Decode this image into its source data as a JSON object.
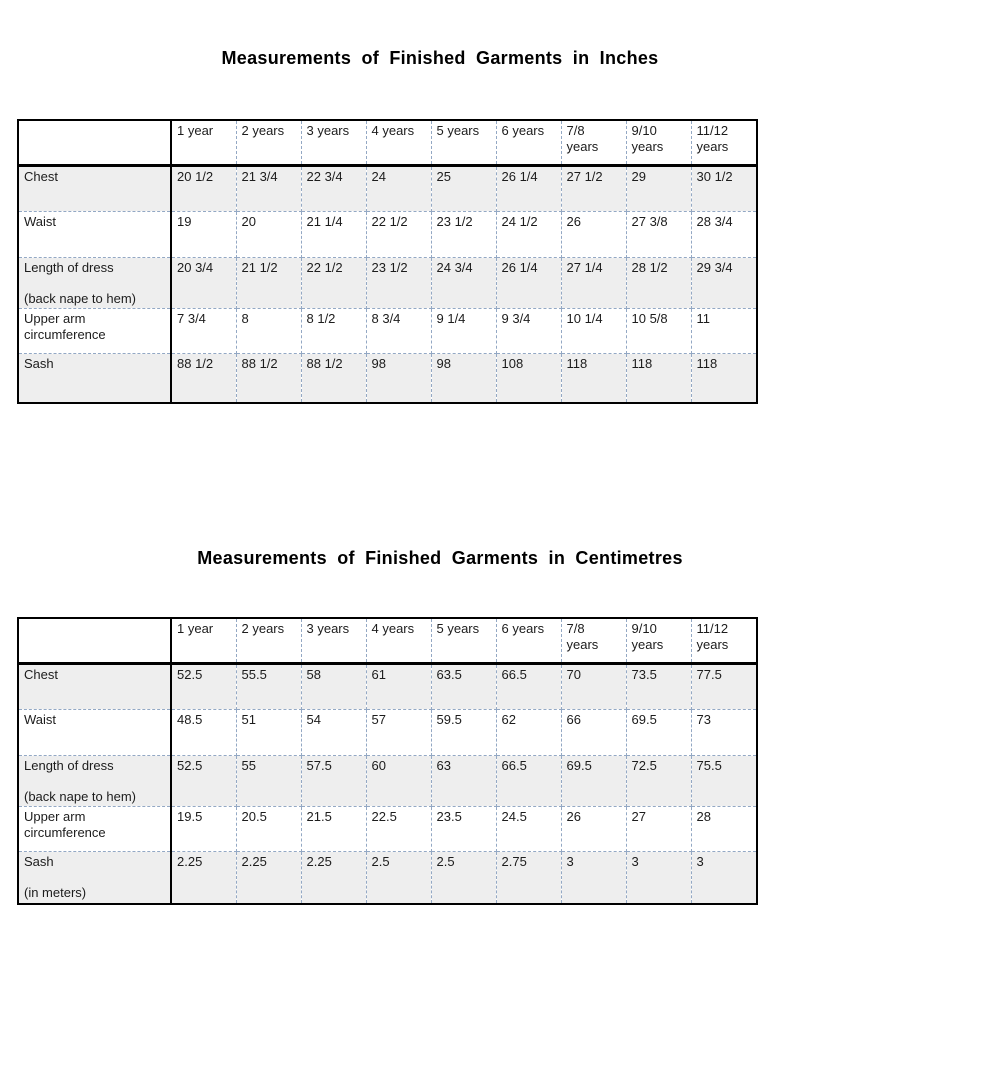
{
  "styles": {
    "grid_dash_color": "#93a8c4",
    "row_shade_color": "#eeeeee",
    "text_color": "#1c1c1c",
    "heavy_border_color": "#000000"
  },
  "tables": [
    {
      "title": "Measurements of Finished Garments in Inches",
      "columns": [
        "",
        "1 year",
        "2 years",
        "3 years",
        "4 years",
        "5 years",
        "6 years",
        "7/8\nyears",
        "9/10\nyears",
        "11/12\nyears"
      ],
      "rows": [
        {
          "label": "Chest",
          "shaded": true,
          "values": [
            "20 1/2",
            "21 3/4",
            "22 3/4",
            "24",
            "25",
            "26 1/4",
            "27 1/2",
            "29",
            "30 1/2"
          ]
        },
        {
          "label": "Waist",
          "shaded": false,
          "values": [
            "19",
            "20",
            "21 1/4",
            "22 1/2",
            "23 1/2",
            "24 1/2",
            "26",
            "27 3/8",
            "28 3/4"
          ]
        },
        {
          "label": "Length of dress\n\n(back nape to hem)",
          "shaded": true,
          "values": [
            "20 3/4",
            "21 1/2",
            "22 1/2",
            "23 1/2",
            "24 3/4",
            "26 1/4",
            "27 1/4",
            "28 1/2",
            "29 3/4"
          ]
        },
        {
          "label": "Upper arm\ncircumference",
          "shaded": false,
          "values": [
            "7 3/4",
            "8",
            "8 1/2",
            "8 3/4",
            "9 1/4",
            "9 3/4",
            "10 1/4",
            "10 5/8",
            "11"
          ]
        },
        {
          "label": "Sash",
          "shaded": true,
          "values": [
            "88 1/2",
            "88 1/2",
            "88 1/2",
            "98",
            "98",
            "108",
            "118",
            "118",
            "118"
          ]
        }
      ]
    },
    {
      "title": "Measurements of Finished Garments in Centimetres",
      "columns": [
        "",
        "1 year",
        "2 years",
        "3 years",
        "4 years",
        "5 years",
        "6 years",
        "7/8\nyears",
        "9/10\nyears",
        "11/12\nyears"
      ],
      "rows": [
        {
          "label": "Chest",
          "shaded": true,
          "values": [
            "52.5",
            "55.5",
            "58",
            "61",
            "63.5",
            "66.5",
            "70",
            "73.5",
            "77.5"
          ]
        },
        {
          "label": "Waist",
          "shaded": false,
          "values": [
            "48.5",
            "51",
            "54",
            "57",
            "59.5",
            "62",
            "66",
            "69.5",
            "73"
          ]
        },
        {
          "label": "Length of dress\n\n(back nape to hem)",
          "shaded": true,
          "values": [
            "52.5",
            "55",
            "57.5",
            "60",
            "63",
            "66.5",
            "69.5",
            "72.5",
            "75.5"
          ]
        },
        {
          "label": "Upper arm\ncircumference",
          "shaded": false,
          "values": [
            "19.5",
            "20.5",
            "21.5",
            "22.5",
            "23.5",
            "24.5",
            "26",
            "27",
            "28"
          ]
        },
        {
          "label": "Sash\n\n(in meters)",
          "shaded": true,
          "values": [
            "2.25",
            "2.25",
            "2.25",
            "2.5",
            "2.5",
            "2.75",
            "3",
            "3",
            "3"
          ]
        }
      ]
    }
  ]
}
